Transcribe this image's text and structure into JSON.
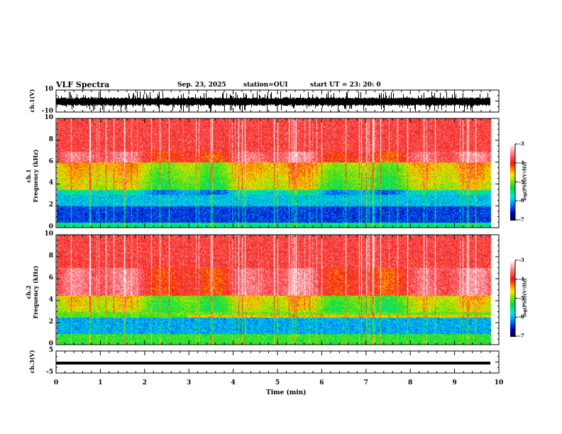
{
  "header": {
    "title": "VLF Spectra",
    "date": "Sep. 23, 2025",
    "station": "station=OUI",
    "start": "start  UT =   23: 20: 0"
  },
  "chart_data": [
    {
      "type": "line",
      "panel": "ch1-waveform",
      "ylabel": "ch.1(V)",
      "ylim": [
        -10,
        10
      ],
      "yticks": [
        "10",
        "-10"
      ],
      "description_values": {
        "baseline": -0.5,
        "typical_amplitude": 2,
        "spike_amplitude": 8
      },
      "x_data_range_min": [
        0,
        9.8
      ]
    },
    {
      "type": "heatmap",
      "panel": "ch1-spectrogram",
      "ylabel_top": "ch.1",
      "ylabel_main": "Frequency (kHz)",
      "ylim": [
        0,
        10
      ],
      "yticks": [
        "0",
        "2",
        "4",
        "6",
        "8",
        "10"
      ],
      "colorbar": {
        "label": "log(PSD)(V²/Hz)",
        "range": [
          -7,
          -3
        ],
        "ticks": [
          "-3",
          "-4",
          "-5",
          "-6",
          "-7"
        ]
      },
      "profile_logpsd": {
        "0-0.5kHz": -5.5,
        "0.5-2kHz": -6.4,
        "2-3.5kHz": -5.9,
        "3.5-6kHz": -5.0,
        "6-10kHz": -3.8
      }
    },
    {
      "type": "heatmap",
      "panel": "ch2-spectrogram",
      "ylabel_top": "ch.2",
      "ylabel_main": "Frequency (kHz)",
      "ylim": [
        0,
        10
      ],
      "yticks": [
        "0",
        "2",
        "4",
        "6",
        "8",
        "10"
      ],
      "colorbar": {
        "label": "log(PSD)(V²/Hz)",
        "range": [
          -7,
          -3
        ],
        "ticks": [
          "-3",
          "-4",
          "-5",
          "-6",
          "-7"
        ]
      },
      "profile_logpsd": {
        "0-1kHz": -5.2,
        "1-2.5kHz": -6.0,
        "2.5-4.5kHz": -5.1,
        "4.5-10kHz": -3.8
      },
      "line_kHz": 2.6
    },
    {
      "type": "line",
      "panel": "ch3-waveform",
      "ylabel": "ch.3(V)",
      "ylim": [
        -5,
        5
      ],
      "yticks": [
        "5",
        "-5"
      ],
      "constant_value": -0.5
    }
  ],
  "xaxis": {
    "label": "Time (min)",
    "range": [
      0,
      10
    ],
    "ticks": [
      "0",
      "1",
      "2",
      "3",
      "4",
      "5",
      "6",
      "7",
      "8",
      "9",
      "10"
    ]
  }
}
